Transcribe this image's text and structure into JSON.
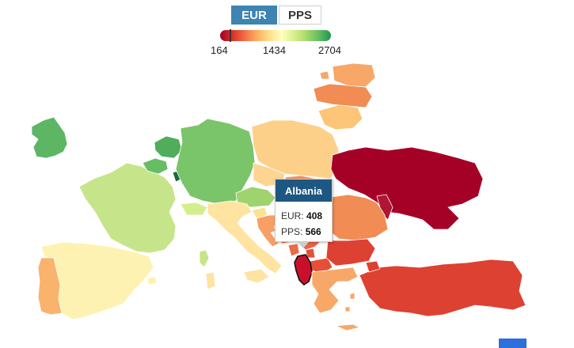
{
  "toggle": {
    "options": [
      "EUR",
      "PPS"
    ],
    "selected": "EUR"
  },
  "legend": {
    "min_label": "164",
    "mid_label": "1434",
    "max_label": "2704",
    "marker_fraction": 0.095,
    "color_scale": [
      "#a50026",
      "#d73027",
      "#f46d43",
      "#fdae61",
      "#fee08b",
      "#ffffbf",
      "#d9ef8b",
      "#a6d96a",
      "#66bd63",
      "#1a9850"
    ]
  },
  "tooltip": {
    "country": "Albania",
    "eur_label": "EUR:",
    "eur_value": "408",
    "pps_label": "PPS:",
    "pps_value": "566"
  },
  "colors": {
    "selected_button": "#3d84b3",
    "tooltip_header": "#1f5783",
    "highlight_country": "#c9102b"
  }
}
